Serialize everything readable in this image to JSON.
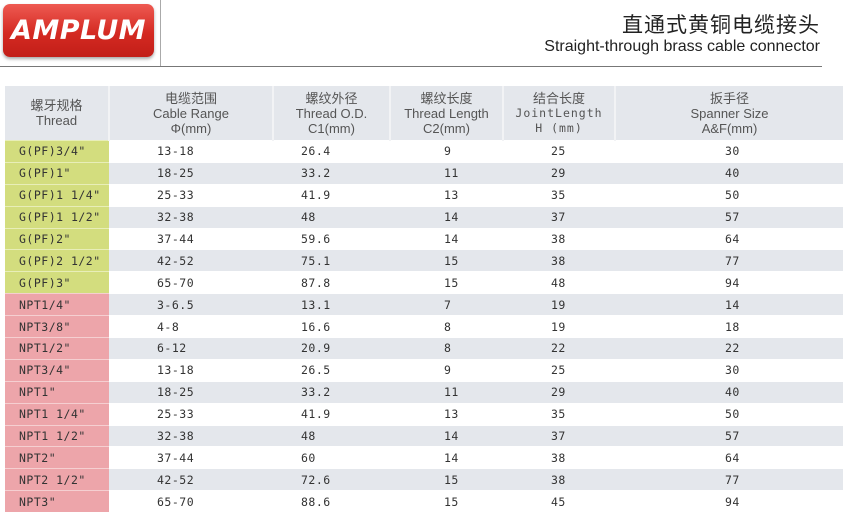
{
  "brand": {
    "logo_text": "AMPLUM",
    "color": "#d42a22"
  },
  "title": {
    "cn": "直通式黄铜电缆接头",
    "en": "Straight-through brass cable connector"
  },
  "colors": {
    "g_thread": "#d3dd7e",
    "npt_thread": "#eda5aa",
    "header_bg": "#e4e7ec",
    "stripe": "#e4e7ec"
  },
  "headers": [
    {
      "cn": "螺牙规格",
      "en": "Thread",
      "unit": ""
    },
    {
      "cn": "电缆范围",
      "en": "Cable Range",
      "unit": "Φ(mm)"
    },
    {
      "cn": "螺纹外径",
      "en": "Thread O.D.",
      "unit": "C1(mm)"
    },
    {
      "cn": "螺纹长度",
      "en": "Thread Length",
      "unit": "C2(mm)"
    },
    {
      "cn": "结合长度",
      "en": "JointLength",
      "unit": "H (mm)"
    },
    {
      "cn": "扳手径",
      "en": "Spanner Size",
      "unit": "A&F(mm)"
    }
  ],
  "rows": [
    {
      "type": "g",
      "cells": [
        "G(PF)3/4\"",
        "13-18",
        "26.4",
        "9",
        "25",
        "30"
      ]
    },
    {
      "type": "g",
      "cells": [
        "G(PF)1\"",
        "18-25",
        "33.2",
        "11",
        "29",
        "40"
      ]
    },
    {
      "type": "g",
      "cells": [
        "G(PF)1 1/4\"",
        "25-33",
        "41.9",
        "13",
        "35",
        "50"
      ]
    },
    {
      "type": "g",
      "cells": [
        "G(PF)1 1/2\"",
        "32-38",
        "48",
        "14",
        "37",
        "57"
      ]
    },
    {
      "type": "g",
      "cells": [
        "G(PF)2\"",
        "37-44",
        "59.6",
        "14",
        "38",
        "64"
      ]
    },
    {
      "type": "g",
      "cells": [
        "G(PF)2 1/2\"",
        "42-52",
        "75.1",
        "15",
        "38",
        "77"
      ]
    },
    {
      "type": "g",
      "cells": [
        "G(PF)3\"",
        "65-70",
        "87.8",
        "15",
        "48",
        "94"
      ]
    },
    {
      "type": "n",
      "cells": [
        "NPT1/4\"",
        "3-6.5",
        "13.1",
        "7",
        "19",
        "14"
      ]
    },
    {
      "type": "n",
      "cells": [
        "NPT3/8\"",
        "4-8",
        "16.6",
        "8",
        "19",
        "18"
      ]
    },
    {
      "type": "n",
      "cells": [
        "NPT1/2\"",
        "6-12",
        "20.9",
        "8",
        "22",
        "22"
      ]
    },
    {
      "type": "n",
      "cells": [
        "NPT3/4\"",
        "13-18",
        "26.5",
        "9",
        "25",
        "30"
      ]
    },
    {
      "type": "n",
      "cells": [
        "NPT1\"",
        "18-25",
        "33.2",
        "11",
        "29",
        "40"
      ]
    },
    {
      "type": "n",
      "cells": [
        "NPT1 1/4\"",
        "25-33",
        "41.9",
        "13",
        "35",
        "50"
      ]
    },
    {
      "type": "n",
      "cells": [
        "NPT1 1/2\"",
        "32-38",
        "48",
        "14",
        "37",
        "57"
      ]
    },
    {
      "type": "n",
      "cells": [
        "NPT2\"",
        "37-44",
        "60",
        "14",
        "38",
        "64"
      ]
    },
    {
      "type": "n",
      "cells": [
        "NPT2 1/2\"",
        "42-52",
        "72.6",
        "15",
        "38",
        "77"
      ]
    },
    {
      "type": "n",
      "cells": [
        "NPT3\"",
        "65-70",
        "88.6",
        "15",
        "45",
        "94"
      ]
    }
  ]
}
